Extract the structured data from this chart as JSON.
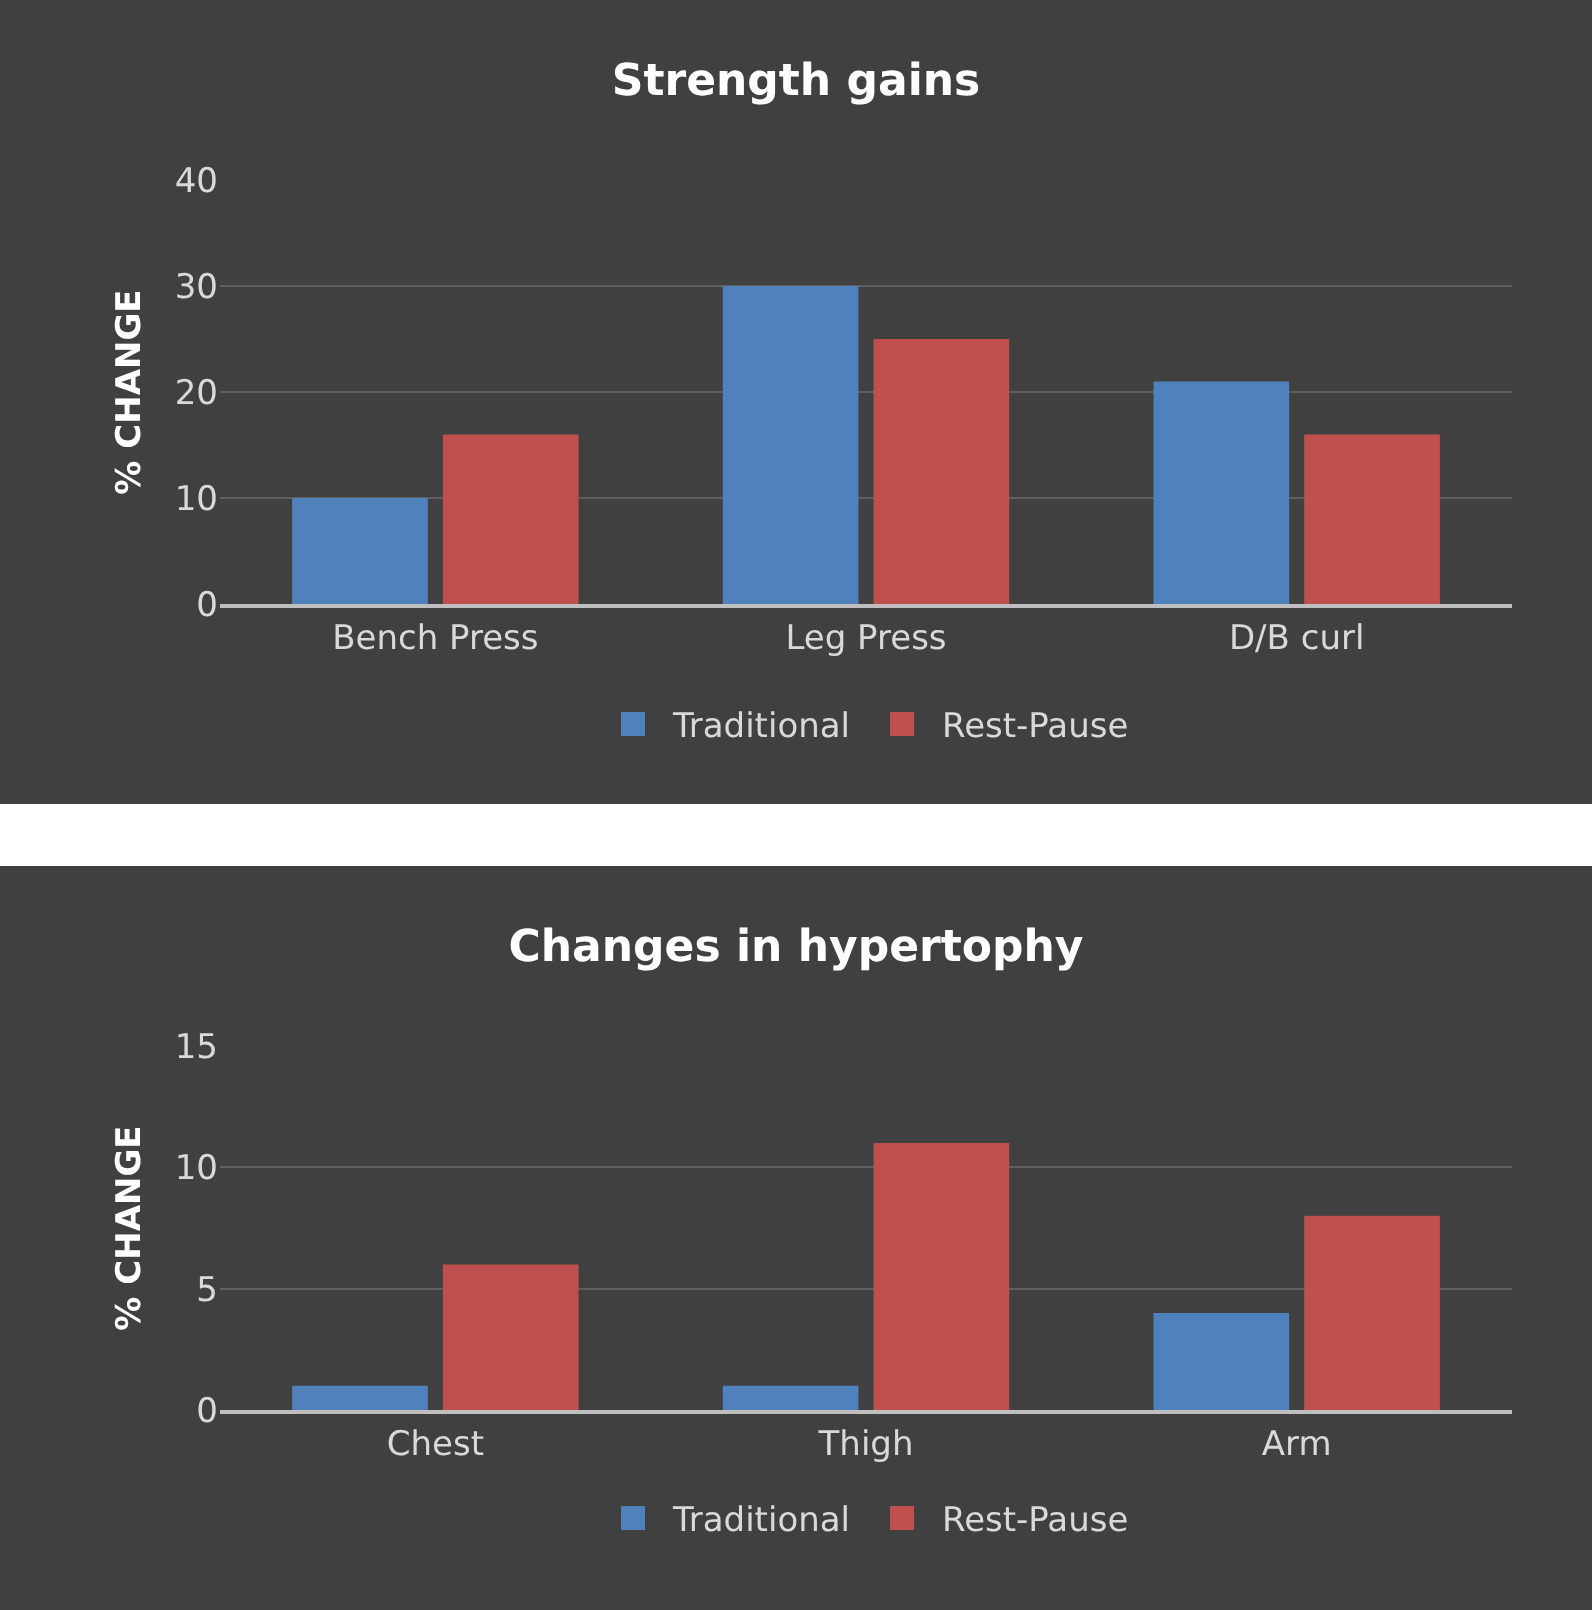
{
  "chart_data": [
    {
      "type": "bar",
      "title": "Strength gains",
      "ylabel": "% CHANGE",
      "categories": [
        "Bench Press",
        "Leg Press",
        "D/B curl"
      ],
      "series": [
        {
          "name": "Traditional",
          "color": "#4f81bd",
          "values": [
            10,
            30,
            21
          ]
        },
        {
          "name": "Rest-Pause",
          "color": "#c0504d",
          "values": [
            16,
            25,
            16
          ]
        }
      ],
      "ylim": [
        0,
        40
      ],
      "yticks": [
        0,
        10,
        20,
        30,
        40
      ],
      "grid": "y",
      "legend": "bottom"
    },
    {
      "type": "bar",
      "title": "Changes in hypertophy",
      "ylabel": "% CHANGE",
      "categories": [
        "Chest",
        "Thigh",
        "Arm"
      ],
      "series": [
        {
          "name": "Traditional",
          "color": "#4f81bd",
          "values": [
            1,
            1,
            4
          ]
        },
        {
          "name": "Rest-Pause",
          "color": "#c0504d",
          "values": [
            6,
            11,
            8
          ]
        }
      ],
      "ylim": [
        0,
        15
      ],
      "yticks": [
        0,
        5,
        10,
        15
      ],
      "grid": "y",
      "legend": "bottom"
    }
  ]
}
